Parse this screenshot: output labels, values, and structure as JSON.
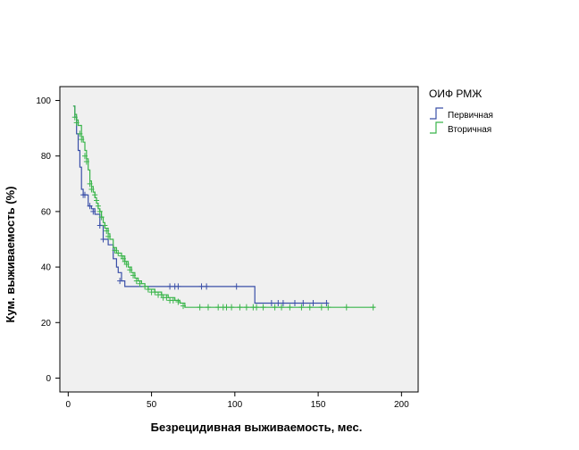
{
  "chart_data": {
    "type": "line",
    "subtype": "kaplan-meier",
    "title": "",
    "xlabel": "Безрецидивная выживаемость, мес.",
    "ylabel": "Кум. выживаемость (%)",
    "xlim": [
      -5,
      210
    ],
    "ylim": [
      -5,
      105
    ],
    "xticks": [
      0,
      50,
      100,
      150,
      200
    ],
    "yticks": [
      0,
      20,
      40,
      60,
      80,
      100
    ],
    "grid": false,
    "legend": {
      "title": "ОИФ РМЖ",
      "position": "top-right"
    },
    "colors": {
      "plot_bg": "#f0f0f0",
      "axis": "#000000"
    },
    "series": [
      {
        "name": "Первичная",
        "color": "#3a4fa8",
        "steps": [
          [
            3,
            98
          ],
          [
            4,
            94
          ],
          [
            5,
            88
          ],
          [
            6,
            82
          ],
          [
            7,
            76
          ],
          [
            8,
            68
          ],
          [
            9,
            66
          ],
          [
            12,
            62
          ],
          [
            14,
            61
          ],
          [
            16,
            59
          ],
          [
            19,
            55
          ],
          [
            21,
            50
          ],
          [
            24,
            48
          ],
          [
            27,
            43
          ],
          [
            29,
            40
          ],
          [
            30,
            38
          ],
          [
            32,
            35
          ],
          [
            34,
            33
          ],
          [
            60,
            33
          ],
          [
            112,
            27
          ],
          [
            156,
            27
          ]
        ],
        "censored": [
          [
            9,
            66
          ],
          [
            10,
            66
          ],
          [
            13,
            62
          ],
          [
            15,
            60
          ],
          [
            19,
            55
          ],
          [
            21,
            50
          ],
          [
            31,
            35
          ],
          [
            61,
            33
          ],
          [
            64,
            33
          ],
          [
            66,
            33
          ],
          [
            80,
            33
          ],
          [
            83,
            33
          ],
          [
            101,
            33
          ],
          [
            122,
            27
          ],
          [
            126,
            27
          ],
          [
            129,
            27
          ],
          [
            136,
            27
          ],
          [
            141,
            27
          ],
          [
            147,
            27
          ],
          [
            155,
            27
          ]
        ]
      },
      {
        "name": "Вторичная",
        "color": "#39b54a",
        "steps": [
          [
            3,
            98
          ],
          [
            4,
            95
          ],
          [
            5,
            93
          ],
          [
            6,
            91
          ],
          [
            8,
            87
          ],
          [
            9,
            85
          ],
          [
            10,
            82
          ],
          [
            11,
            79
          ],
          [
            12,
            75
          ],
          [
            13,
            71
          ],
          [
            14,
            69
          ],
          [
            15,
            67
          ],
          [
            16,
            65
          ],
          [
            17,
            63
          ],
          [
            18,
            61
          ],
          [
            19,
            60
          ],
          [
            20,
            58
          ],
          [
            21,
            56
          ],
          [
            22,
            54
          ],
          [
            24,
            52
          ],
          [
            25,
            50
          ],
          [
            27,
            47
          ],
          [
            29,
            45
          ],
          [
            32,
            44
          ],
          [
            34,
            42
          ],
          [
            36,
            40
          ],
          [
            38,
            38
          ],
          [
            40,
            36
          ],
          [
            42,
            35
          ],
          [
            44,
            34
          ],
          [
            46,
            33
          ],
          [
            48,
            32
          ],
          [
            52,
            31
          ],
          [
            56,
            30
          ],
          [
            60,
            29
          ],
          [
            64,
            28
          ],
          [
            67,
            27
          ],
          [
            70,
            25.5
          ],
          [
            184,
            25.5
          ]
        ],
        "censored": [
          [
            4,
            94
          ],
          [
            5,
            92
          ],
          [
            7,
            88
          ],
          [
            8,
            86
          ],
          [
            10,
            80
          ],
          [
            11,
            78
          ],
          [
            13,
            70
          ],
          [
            14,
            68
          ],
          [
            16,
            66
          ],
          [
            17,
            64
          ],
          [
            18,
            62
          ],
          [
            19,
            60
          ],
          [
            20,
            58
          ],
          [
            22,
            55
          ],
          [
            23,
            53
          ],
          [
            24,
            51
          ],
          [
            28,
            46
          ],
          [
            30,
            45
          ],
          [
            32,
            44
          ],
          [
            33,
            43
          ],
          [
            34,
            42
          ],
          [
            35,
            41
          ],
          [
            37,
            39
          ],
          [
            39,
            37
          ],
          [
            41,
            35
          ],
          [
            43,
            34
          ],
          [
            46,
            33
          ],
          [
            48,
            32
          ],
          [
            50,
            31
          ],
          [
            52,
            31
          ],
          [
            54,
            30
          ],
          [
            56,
            30
          ],
          [
            57,
            29
          ],
          [
            59,
            29
          ],
          [
            61,
            28
          ],
          [
            63,
            28
          ],
          [
            66,
            27.5
          ],
          [
            69,
            26
          ],
          [
            79,
            25.5
          ],
          [
            84,
            25.5
          ],
          [
            90,
            25.5
          ],
          [
            93,
            25.5
          ],
          [
            95,
            25.5
          ],
          [
            98,
            25.5
          ],
          [
            103,
            25.5
          ],
          [
            107,
            25.5
          ],
          [
            111,
            25.5
          ],
          [
            113,
            25.5
          ],
          [
            117,
            25.5
          ],
          [
            124,
            25.5
          ],
          [
            128,
            25.5
          ],
          [
            133,
            25.5
          ],
          [
            140,
            25.5
          ],
          [
            145,
            25.5
          ],
          [
            152,
            25.5
          ],
          [
            156,
            25.5
          ],
          [
            167,
            25.5
          ],
          [
            183,
            25.5
          ]
        ]
      }
    ]
  }
}
